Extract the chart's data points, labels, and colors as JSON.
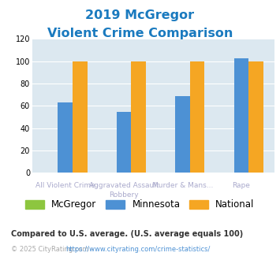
{
  "title_line1": "2019 McGregor",
  "title_line2": "Violent Crime Comparison",
  "title_color": "#1a7abf",
  "top_labels": [
    "",
    "Aggravated Assault",
    "Murder & Mans...",
    ""
  ],
  "bot_labels": [
    "All Violent Crime",
    "Robbery",
    "",
    "Rape"
  ],
  "top_label_color": "#aaaacc",
  "bot_label_color": "#aaaacc",
  "mcgregor": [
    0,
    0,
    0,
    0
  ],
  "minnesota": [
    63,
    55,
    69,
    103
  ],
  "national": [
    100,
    100,
    100,
    100
  ],
  "mcgregor_color": "#8dc63f",
  "minnesota_color": "#4d91d4",
  "national_color": "#f5a623",
  "ylim": [
    0,
    120
  ],
  "yticks": [
    0,
    20,
    40,
    60,
    80,
    100,
    120
  ],
  "plot_bg": "#dce8f0",
  "legend_labels": [
    "McGregor",
    "Minnesota",
    "National"
  ],
  "footnote1": "Compared to U.S. average. (U.S. average equals 100)",
  "footnote1_color": "#333333",
  "footnote2_prefix": "© 2025 CityRating.com - ",
  "footnote2_url": "https://www.cityrating.com/crime-statistics/",
  "footnote2_color": "#aaaaaa",
  "url_color": "#4d91d4",
  "bar_width": 0.25
}
